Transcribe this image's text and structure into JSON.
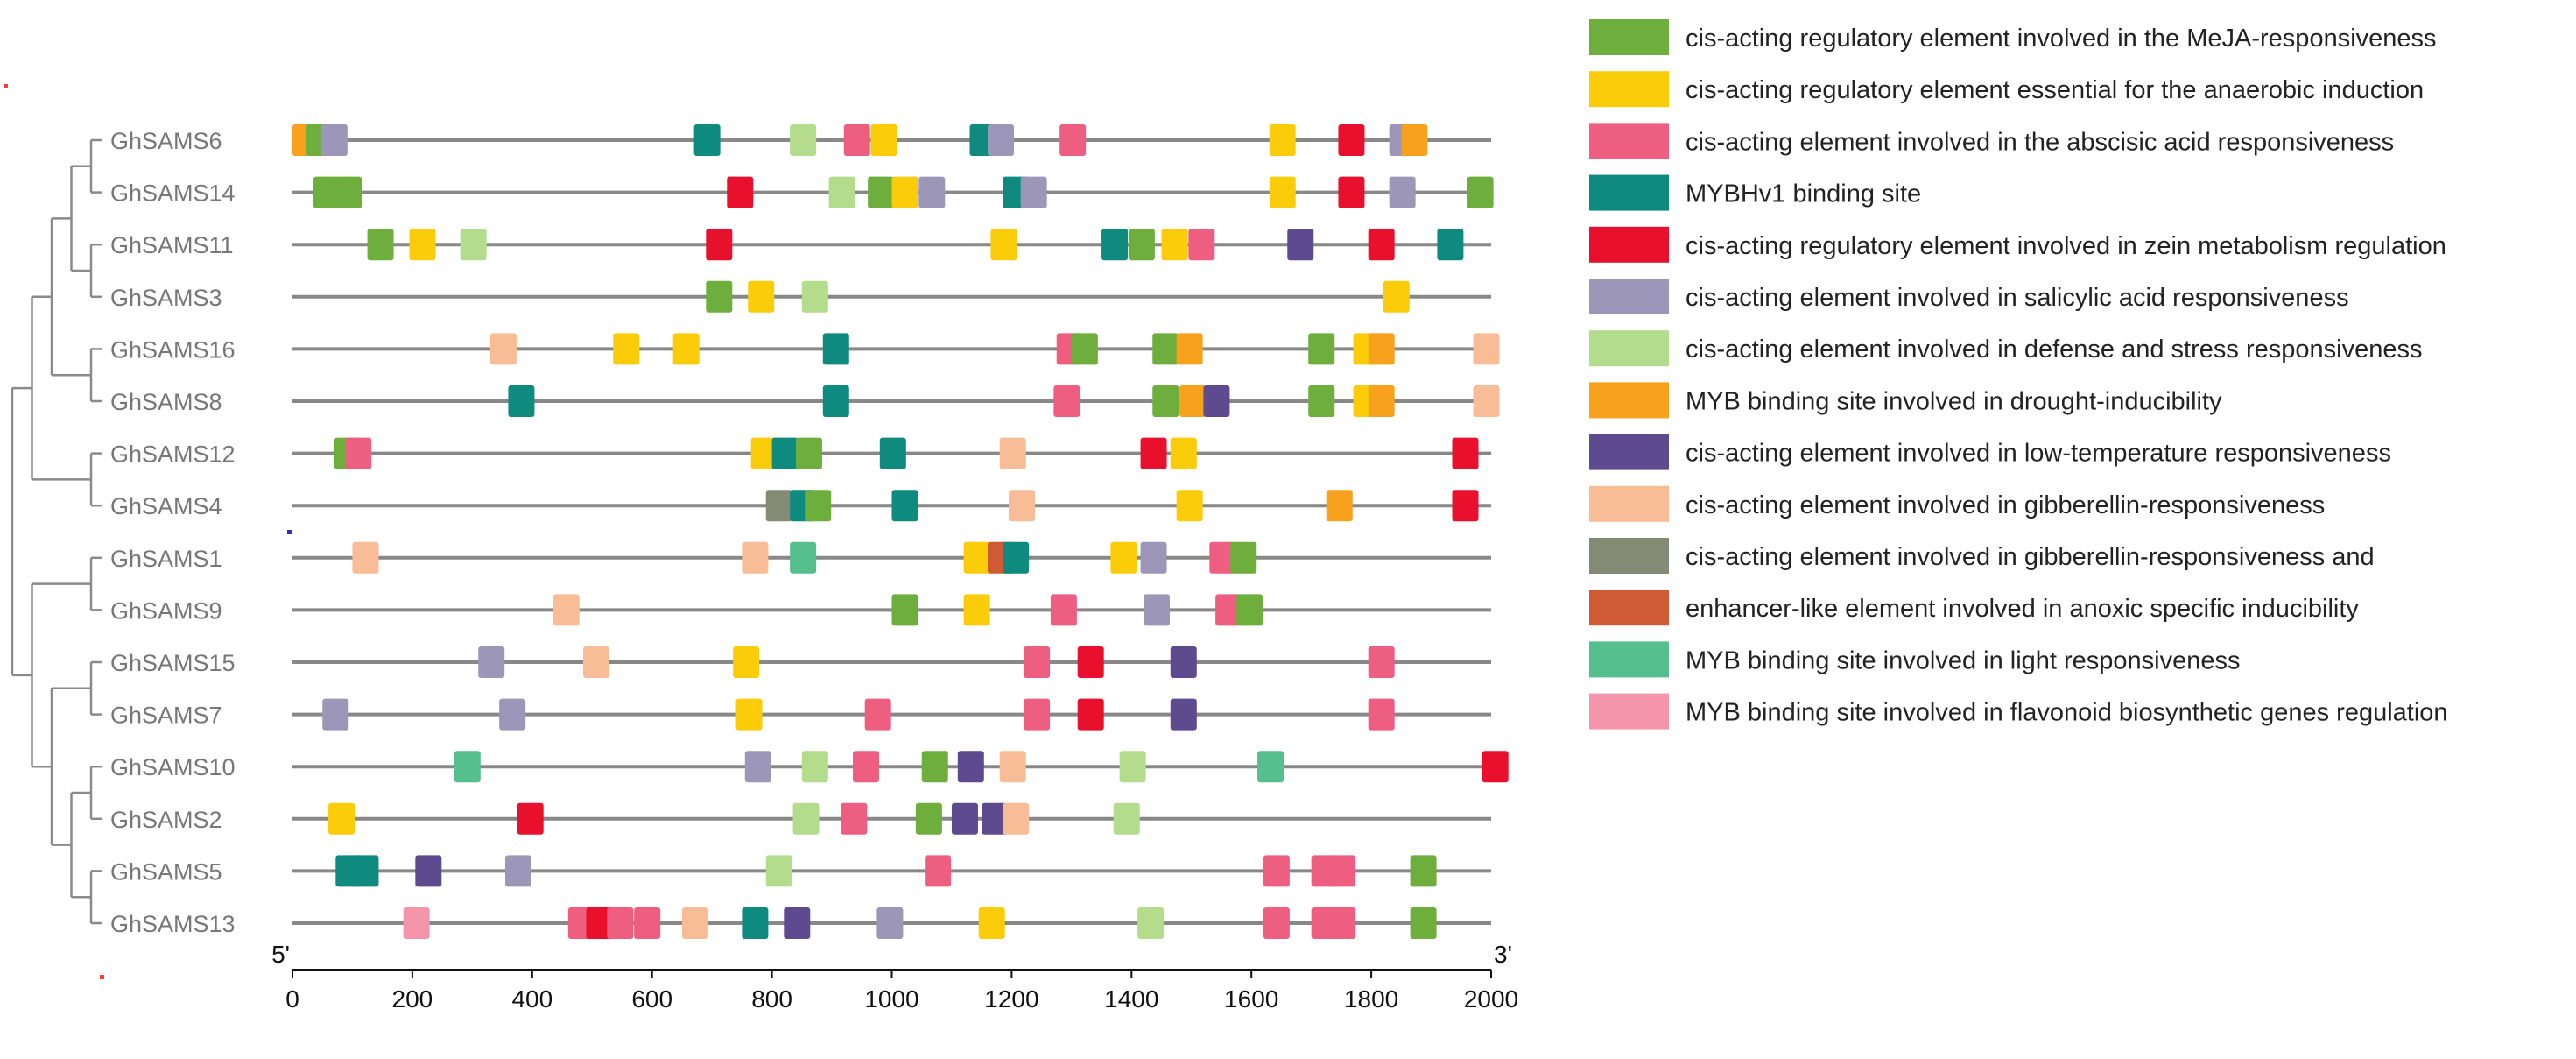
{
  "chart_data": {
    "type": "motif-map",
    "x_range": [
      0,
      2000
    ],
    "x_ticks": [
      0,
      200,
      400,
      600,
      800,
      1000,
      1200,
      1400,
      1600,
      1800,
      2000
    ],
    "end_labels": {
      "left": "5'",
      "right": "3'"
    },
    "motif_types": [
      {
        "id": "meja",
        "label": "cis-acting regulatory element involved in the MeJA-responsiveness",
        "color": "#6DAE3C"
      },
      {
        "id": "anaerobic",
        "label": "cis-acting regulatory element essential for the anaerobic induction",
        "color": "#FACC0A"
      },
      {
        "id": "aba",
        "label": "cis-acting element involved in the abscisic acid responsiveness",
        "color": "#EE5E80"
      },
      {
        "id": "mybhv1",
        "label": "MYBHv1 binding site",
        "color": "#0E8A7F"
      },
      {
        "id": "zein",
        "label": "cis-acting regulatory element involved in zein metabolism regulation",
        "color": "#E8102D"
      },
      {
        "id": "salicylic",
        "label": "cis-acting element involved in salicylic acid responsiveness",
        "color": "#9C97B8"
      },
      {
        "id": "defense",
        "label": "cis-acting element involved in defense and stress responsiveness",
        "color": "#B3DC8C"
      },
      {
        "id": "drought",
        "label": "MYB binding site involved in drought-inducibility",
        "color": "#F7A11C"
      },
      {
        "id": "lowtemp",
        "label": "cis-acting element involved in low-temperature responsiveness",
        "color": "#5D4A8F"
      },
      {
        "id": "gibberellin",
        "label": "cis-acting element involved in gibberellin-responsiveness",
        "color": "#F8BD96"
      },
      {
        "id": "gibberellin2",
        "label": "cis-acting element involved in gibberellin-responsiveness and",
        "color": "#848A73"
      },
      {
        "id": "anoxic",
        "label": "enhancer-like element involved in anoxic specific inducibility",
        "color": "#CF5A33"
      },
      {
        "id": "light",
        "label": "MYB binding site involved in light responsiveness",
        "color": "#56BF8E"
      },
      {
        "id": "flavonoid",
        "label": "MYB binding site involved in flavonoid biosynthetic genes regulation",
        "color": "#F495AB"
      }
    ],
    "genes": [
      {
        "name": "GhSAMS6",
        "motifs": [
          [
            0,
            "drought"
          ],
          [
            23,
            "meja"
          ],
          [
            48,
            "salicylic"
          ],
          [
            670,
            "mybhv1"
          ],
          [
            830,
            "defense"
          ],
          [
            920,
            "aba"
          ],
          [
            965,
            "anaerobic"
          ],
          [
            1130,
            "mybhv1"
          ],
          [
            1160,
            "salicylic"
          ],
          [
            1280,
            "aba"
          ],
          [
            1630,
            "anaerobic"
          ],
          [
            1745,
            "zein"
          ],
          [
            1830,
            "salicylic"
          ],
          [
            1850,
            "drought"
          ]
        ]
      },
      {
        "name": "GhSAMS14",
        "motifs": [
          [
            35,
            "meja"
          ],
          [
            72,
            "meja"
          ],
          [
            725,
            "zein"
          ],
          [
            895,
            "defense"
          ],
          [
            960,
            "meja"
          ],
          [
            1000,
            "anaerobic"
          ],
          [
            1045,
            "salicylic"
          ],
          [
            1185,
            "mybhv1"
          ],
          [
            1215,
            "salicylic"
          ],
          [
            1630,
            "anaerobic"
          ],
          [
            1745,
            "zein"
          ],
          [
            1830,
            "salicylic"
          ],
          [
            1960,
            "meja"
          ]
        ]
      },
      {
        "name": "GhSAMS11",
        "motifs": [
          [
            125,
            "meja"
          ],
          [
            195,
            "anaerobic"
          ],
          [
            280,
            "defense"
          ],
          [
            690,
            "zein"
          ],
          [
            1165,
            "anaerobic"
          ],
          [
            1350,
            "mybhv1"
          ],
          [
            1395,
            "meja"
          ],
          [
            1450,
            "anaerobic"
          ],
          [
            1495,
            "aba"
          ],
          [
            1660,
            "lowtemp"
          ],
          [
            1795,
            "zein"
          ],
          [
            1910,
            "mybhv1"
          ]
        ]
      },
      {
        "name": "GhSAMS3",
        "motifs": [
          [
            690,
            "meja"
          ],
          [
            760,
            "anaerobic"
          ],
          [
            850,
            "defense"
          ],
          [
            1820,
            "anaerobic"
          ]
        ]
      },
      {
        "name": "GhSAMS16",
        "motifs": [
          [
            330,
            "gibberellin"
          ],
          [
            535,
            "anaerobic"
          ],
          [
            635,
            "anaerobic"
          ],
          [
            885,
            "mybhv1"
          ],
          [
            1275,
            "aba"
          ],
          [
            1300,
            "meja"
          ],
          [
            1435,
            "meja"
          ],
          [
            1475,
            "drought"
          ],
          [
            1695,
            "meja"
          ],
          [
            1770,
            "anaerobic"
          ],
          [
            1795,
            "drought"
          ],
          [
            1970,
            "gibberellin"
          ]
        ]
      },
      {
        "name": "GhSAMS8",
        "motifs": [
          [
            360,
            "mybhv1"
          ],
          [
            885,
            "mybhv1"
          ],
          [
            1270,
            "aba"
          ],
          [
            1435,
            "meja"
          ],
          [
            1480,
            "drought"
          ],
          [
            1520,
            "lowtemp"
          ],
          [
            1695,
            "meja"
          ],
          [
            1770,
            "anaerobic"
          ],
          [
            1795,
            "drought"
          ],
          [
            1970,
            "gibberellin"
          ]
        ]
      },
      {
        "name": "GhSAMS12",
        "motifs": [
          [
            70,
            "meja"
          ],
          [
            88,
            "aba"
          ],
          [
            765,
            "anaerobic"
          ],
          [
            800,
            "mybhv1"
          ],
          [
            840,
            "meja"
          ],
          [
            980,
            "mybhv1"
          ],
          [
            1180,
            "gibberellin"
          ],
          [
            1415,
            "zein"
          ],
          [
            1465,
            "anaerobic"
          ],
          [
            1935,
            "zein"
          ]
        ]
      },
      {
        "name": "GhSAMS4",
        "motifs": [
          [
            790,
            "gibberellin2"
          ],
          [
            830,
            "mybhv1"
          ],
          [
            855,
            "meja"
          ],
          [
            1000,
            "mybhv1"
          ],
          [
            1195,
            "gibberellin"
          ],
          [
            1475,
            "anaerobic"
          ],
          [
            1725,
            "drought"
          ],
          [
            1935,
            "zein"
          ]
        ]
      },
      {
        "name": "GhSAMS1",
        "motifs": [
          [
            100,
            "gibberellin"
          ],
          [
            750,
            "gibberellin"
          ],
          [
            830,
            "light"
          ],
          [
            1120,
            "anaerobic"
          ],
          [
            1160,
            "anoxic"
          ],
          [
            1185,
            "mybhv1"
          ],
          [
            1365,
            "anaerobic"
          ],
          [
            1415,
            "salicylic"
          ],
          [
            1530,
            "aba"
          ],
          [
            1565,
            "meja"
          ]
        ]
      },
      {
        "name": "GhSAMS9",
        "motifs": [
          [
            435,
            "gibberellin"
          ],
          [
            1000,
            "meja"
          ],
          [
            1120,
            "anaerobic"
          ],
          [
            1265,
            "aba"
          ],
          [
            1420,
            "salicylic"
          ],
          [
            1540,
            "aba"
          ],
          [
            1575,
            "meja"
          ]
        ]
      },
      {
        "name": "GhSAMS15",
        "motifs": [
          [
            310,
            "salicylic"
          ],
          [
            485,
            "gibberellin"
          ],
          [
            735,
            "anaerobic"
          ],
          [
            1220,
            "aba"
          ],
          [
            1310,
            "zein"
          ],
          [
            1465,
            "lowtemp"
          ],
          [
            1795,
            "aba"
          ]
        ]
      },
      {
        "name": "GhSAMS7",
        "motifs": [
          [
            50,
            "salicylic"
          ],
          [
            345,
            "salicylic"
          ],
          [
            740,
            "anaerobic"
          ],
          [
            955,
            "aba"
          ],
          [
            1220,
            "aba"
          ],
          [
            1310,
            "zein"
          ],
          [
            1465,
            "lowtemp"
          ],
          [
            1795,
            "aba"
          ]
        ]
      },
      {
        "name": "GhSAMS10",
        "motifs": [
          [
            270,
            "light"
          ],
          [
            755,
            "salicylic"
          ],
          [
            850,
            "defense"
          ],
          [
            935,
            "aba"
          ],
          [
            1050,
            "meja"
          ],
          [
            1110,
            "lowtemp"
          ],
          [
            1180,
            "gibberellin"
          ],
          [
            1380,
            "defense"
          ],
          [
            1610,
            "light"
          ],
          [
            1985,
            "zein"
          ]
        ]
      },
      {
        "name": "GhSAMS2",
        "motifs": [
          [
            60,
            "anaerobic"
          ],
          [
            375,
            "zein"
          ],
          [
            835,
            "defense"
          ],
          [
            915,
            "aba"
          ],
          [
            1040,
            "meja"
          ],
          [
            1100,
            "lowtemp"
          ],
          [
            1150,
            "lowtemp"
          ],
          [
            1185,
            "gibberellin"
          ],
          [
            1370,
            "defense"
          ]
        ]
      },
      {
        "name": "GhSAMS5",
        "motifs": [
          [
            72,
            "mybhv1"
          ],
          [
            100,
            "mybhv1"
          ],
          [
            205,
            "lowtemp"
          ],
          [
            355,
            "salicylic"
          ],
          [
            790,
            "defense"
          ],
          [
            1055,
            "aba"
          ],
          [
            1620,
            "aba"
          ],
          [
            1700,
            "aba"
          ],
          [
            1730,
            "aba"
          ],
          [
            1865,
            "meja"
          ]
        ]
      },
      {
        "name": "GhSAMS13",
        "motifs": [
          [
            185,
            "flavonoid"
          ],
          [
            460,
            "aba"
          ],
          [
            490,
            "zein"
          ],
          [
            525,
            "aba"
          ],
          [
            570,
            "aba"
          ],
          [
            650,
            "gibberellin"
          ],
          [
            750,
            "mybhv1"
          ],
          [
            820,
            "lowtemp"
          ],
          [
            975,
            "salicylic"
          ],
          [
            1145,
            "anaerobic"
          ],
          [
            1410,
            "defense"
          ],
          [
            1620,
            "aba"
          ],
          [
            1700,
            "aba"
          ],
          [
            1730,
            "aba"
          ],
          [
            1865,
            "meja"
          ]
        ]
      }
    ]
  }
}
